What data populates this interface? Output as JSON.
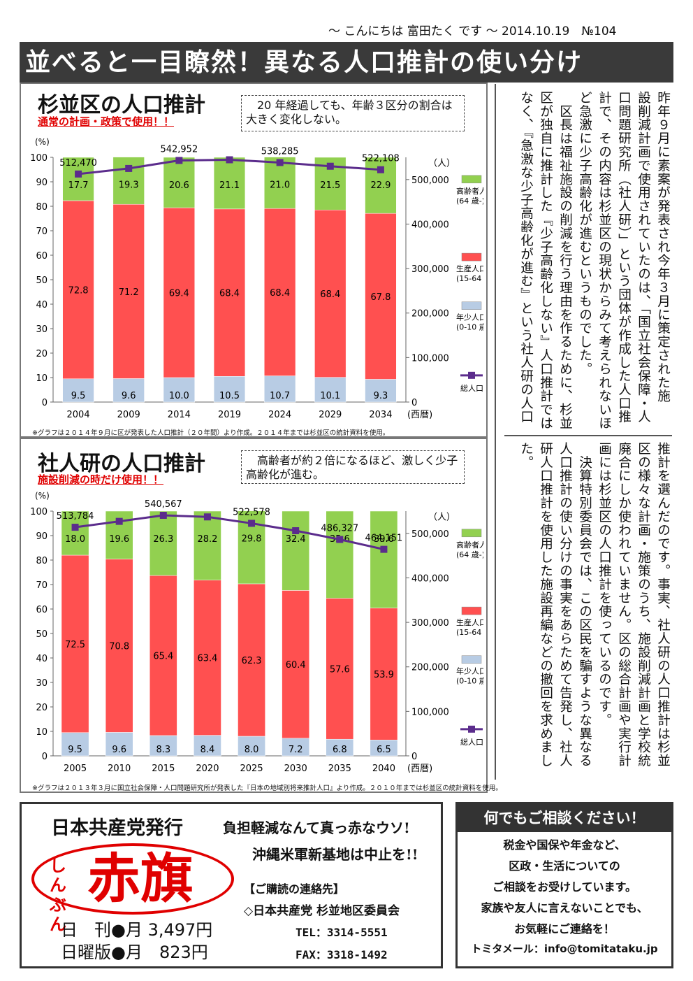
{
  "header": {
    "line": "～ こんにちは 富田たく です ～ 2014.10.19　№104",
    "banner": "並べると一目瞭然！異なる人口推計の使い分け"
  },
  "colors": {
    "elderly": "#92d050",
    "working": "#ff5050",
    "young": "#b8cce4",
    "total": "#5b2c8c",
    "alert": "#e00000"
  },
  "labels": {
    "unit_pct": "(%)",
    "unit_people": "（人）",
    "era": "(西暦)",
    "legend_elderly": [
      "高齢者人口",
      "(64 歳-)"
    ],
    "legend_working": [
      "生産人口",
      "(15-64 歳)"
    ],
    "legend_young": [
      "年少人口",
      "(0-10 歳)"
    ],
    "legend_total": "総人口"
  },
  "chart1": {
    "title": "杉並区の人口推計",
    "subtitle": "通常の計画・政策で使用！！",
    "note": "　20 年経過しても、年齢３区分の割合は大きく変化しない。",
    "footnote": "※グラフは２０１４年９月に区が発表した人口推計（２０年間）より作成。２０１４年までは杉並区の統計資料を使用。"
  },
  "chart2": {
    "title": "社人研の人口推計",
    "subtitle": "施設削減の時だけ使用！！",
    "note": "　高齢者が約２倍になるほど、激しく少子高齢化が進む。",
    "footnote": "※グラフは２０１３年３月に国立社会保障・人口問題研究所が発表した『日本の地域別将来推計人口』より作成。２０１０年までは杉並区の統計資料を使用。"
  },
  "chart_data": [
    {
      "type": "bar",
      "stacked": true,
      "categories": [
        "2004",
        "2009",
        "2014",
        "2019",
        "2024",
        "2029",
        "2034"
      ],
      "series": [
        {
          "name": "年少人口",
          "values": [
            9.5,
            9.6,
            10.0,
            10.5,
            10.7,
            10.1,
            9.3
          ],
          "labels": [
            "9.5",
            "9.6",
            "10.0",
            "10.5",
            "10.7",
            "10.1",
            "9.3"
          ]
        },
        {
          "name": "生産人口",
          "values": [
            72.8,
            71.2,
            69.4,
            68.4,
            68.4,
            68.4,
            67.8
          ],
          "labels": [
            "72.8",
            "71.2",
            "69.4",
            "68.4",
            "68.4",
            "68.4",
            "67.8"
          ]
        },
        {
          "name": "高齢者人口",
          "values": [
            17.7,
            19.3,
            20.6,
            21.1,
            21.0,
            21.5,
            22.9
          ],
          "labels": [
            "17.7",
            "19.3",
            "20.6",
            "21.1",
            "21.0",
            "21.5",
            "22.9"
          ]
        }
      ],
      "line": {
        "name": "総人口",
        "values": [
          512470,
          525000,
          542952,
          544500,
          538285,
          530000,
          522108
        ]
      },
      "total_labels": [
        {
          "i": 0,
          "text": "512,470"
        },
        {
          "i": 2,
          "text": "542,952"
        },
        {
          "i": 4,
          "text": "538,285"
        },
        {
          "i": 6,
          "text": "522,108"
        }
      ],
      "ylim": [
        0,
        100
      ],
      "y2lim": [
        0,
        550000
      ],
      "yticks": [
        "0",
        "10",
        "20",
        "30",
        "40",
        "50",
        "60",
        "70",
        "80",
        "90",
        "100"
      ],
      "y2ticks": [
        {
          "v": 0,
          "t": "0"
        },
        {
          "v": 100000,
          "t": "100,000"
        },
        {
          "v": 200000,
          "t": "200,000"
        },
        {
          "v": 300000,
          "t": "300,000"
        },
        {
          "v": 400000,
          "t": "400,000"
        },
        {
          "v": 500000,
          "t": "500,000"
        }
      ]
    },
    {
      "type": "bar",
      "stacked": true,
      "categories": [
        "2005",
        "2010",
        "2015",
        "2020",
        "2025",
        "2030",
        "2035",
        "2040"
      ],
      "series": [
        {
          "name": "年少人口",
          "values": [
            9.5,
            9.6,
            8.3,
            8.4,
            8.0,
            7.2,
            6.8,
            6.5
          ],
          "labels": [
            "9.5",
            "9.6",
            "8.3",
            "8.4",
            "8.0",
            "7.2",
            "6.8",
            "6.5"
          ]
        },
        {
          "name": "生産人口",
          "values": [
            72.5,
            70.8,
            65.4,
            63.4,
            62.3,
            60.4,
            57.6,
            53.9
          ],
          "labels": [
            "72.5",
            "70.8",
            "65.4",
            "63.4",
            "62.3",
            "60.4",
            "57.6",
            "53.9"
          ]
        },
        {
          "name": "高齢者人口",
          "values": [
            18.0,
            19.6,
            26.3,
            28.2,
            29.8,
            32.4,
            35.6,
            39.6
          ],
          "labels": [
            "18.0",
            "19.6",
            "26.3",
            "28.2",
            "29.8",
            "32.4",
            "35.6",
            "39.6"
          ]
        }
      ],
      "line": {
        "name": "総人口",
        "values": [
          513784,
          527000,
          540567,
          537000,
          522578,
          506000,
          486327,
          464151
        ]
      },
      "total_labels": [
        {
          "i": 0,
          "text": "513,784"
        },
        {
          "i": 2,
          "text": "540,567"
        },
        {
          "i": 4,
          "text": "522,578"
        },
        {
          "i": 6,
          "text": "486,327"
        },
        {
          "i": 7,
          "text": "464,151"
        }
      ],
      "ylim": [
        0,
        100
      ],
      "y2lim": [
        0,
        550000
      ],
      "yticks": [
        "0",
        "10",
        "20",
        "30",
        "40",
        "50",
        "60",
        "70",
        "80",
        "90",
        "100"
      ],
      "y2ticks": [
        {
          "v": 0,
          "t": "0"
        },
        {
          "v": 100000,
          "t": "100,000"
        },
        {
          "v": 200000,
          "t": "200,000"
        },
        {
          "v": 300000,
          "t": "300,000"
        },
        {
          "v": 400000,
          "t": "400,000"
        },
        {
          "v": 500000,
          "t": "500,000"
        }
      ]
    }
  ],
  "article": {
    "upper": [
      "昨年９月に素案が発表され今年３月に策定された施",
      "設削減計画で使用されていたのは、「国立社会保障・人",
      "口問題研究所（社人研）」という団体が作成した人口推",
      "計で、その内容は杉並区の現状からみて考えられないほ",
      "ど急激に少子高齢化が進むというものでした。",
      "　区長は福祉施設の削減を行う理由を作るために、杉並",
      "区が独自に推計した『少子高齢化しない』人口推計では",
      "なく、『急激な少子高齢化が進む』という社人研の人口"
    ],
    "lower": [
      "推計を選んだのです。事実、社人研の人口推計は杉並",
      "区の様々な計画・施策のうち、施設削減計画と学校統",
      "廃合にしか使われていません。区の総合計画や実行計",
      "画には杉並区の人口推計を使っているのです。",
      "　決算特別委員会では、この区民を騙すような異なる",
      "人口推計の使い分けの事実をあらためて告発し、社人",
      "研人口推計を使用した施設再編などの撤回を求めまし",
      "た。"
    ]
  },
  "ad": {
    "publisher": "日本共産党発行",
    "logo_small": "しんぶん",
    "logo_big": "赤旗",
    "slogan1": "負担軽減なんて真っ赤なウソ!",
    "slogan2": "沖縄米軍新基地は中止を!!",
    "contact_head": "【ご購読の連絡先】",
    "contact_org": "◇日本共産党 杉並地区委員会",
    "tel": "TEL：3314-5551",
    "fax": "FAX：3318-1492",
    "daily": "日　刊●月 3,497円",
    "sunday": "日曜版●月　823円"
  },
  "consult": {
    "title": "何でもご相談ください！",
    "lines": [
      "税金や国保や年金など、",
      "区政・生活についての",
      "ご相談をお受けしています。",
      "家族や友人に言えないことでも、",
      "お気軽にご連絡を！"
    ],
    "email": "トミタメール：info@tomitataku.jp"
  }
}
